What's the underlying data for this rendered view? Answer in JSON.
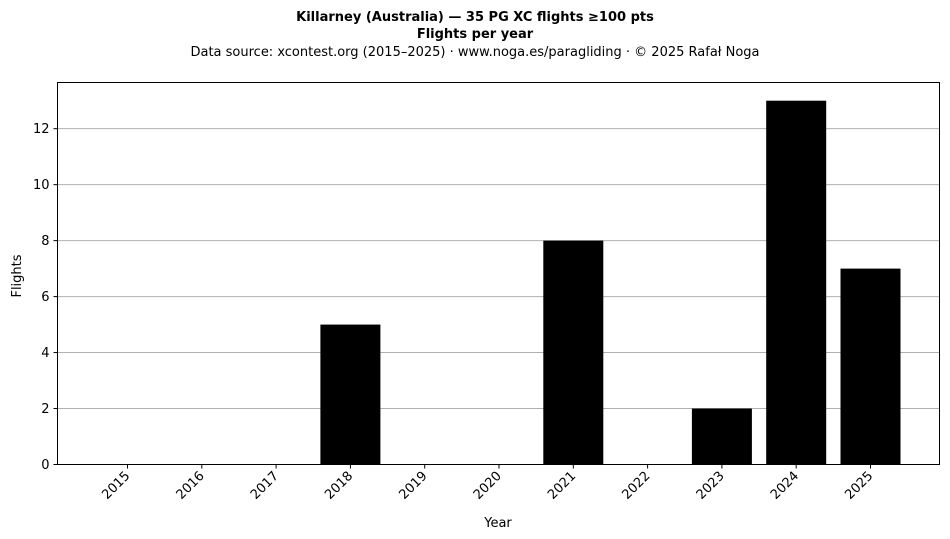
{
  "chart_data": {
    "type": "bar",
    "title": "Killarney (Australia)  —  35 PG XC flights ≥100 pts",
    "subtitle": "Flights per year",
    "source_line": "Data source: xcontest.org (2015–2025)  ·  www.noga.es/paragliding  ·  © 2025 Rafał Noga",
    "xlabel": "Year",
    "ylabel": "Flights",
    "categories": [
      "2015",
      "2016",
      "2017",
      "2018",
      "2019",
      "2020",
      "2021",
      "2022",
      "2023",
      "2024",
      "2025"
    ],
    "values": [
      0,
      0,
      0,
      5,
      0,
      0,
      8,
      0,
      2,
      13,
      7
    ],
    "ylim": [
      0,
      13.65
    ],
    "yticks": [
      0,
      2,
      4,
      6,
      8,
      10,
      12
    ],
    "grid": "y",
    "bar_color": "#000000",
    "grid_color": "#b0b0b0"
  }
}
